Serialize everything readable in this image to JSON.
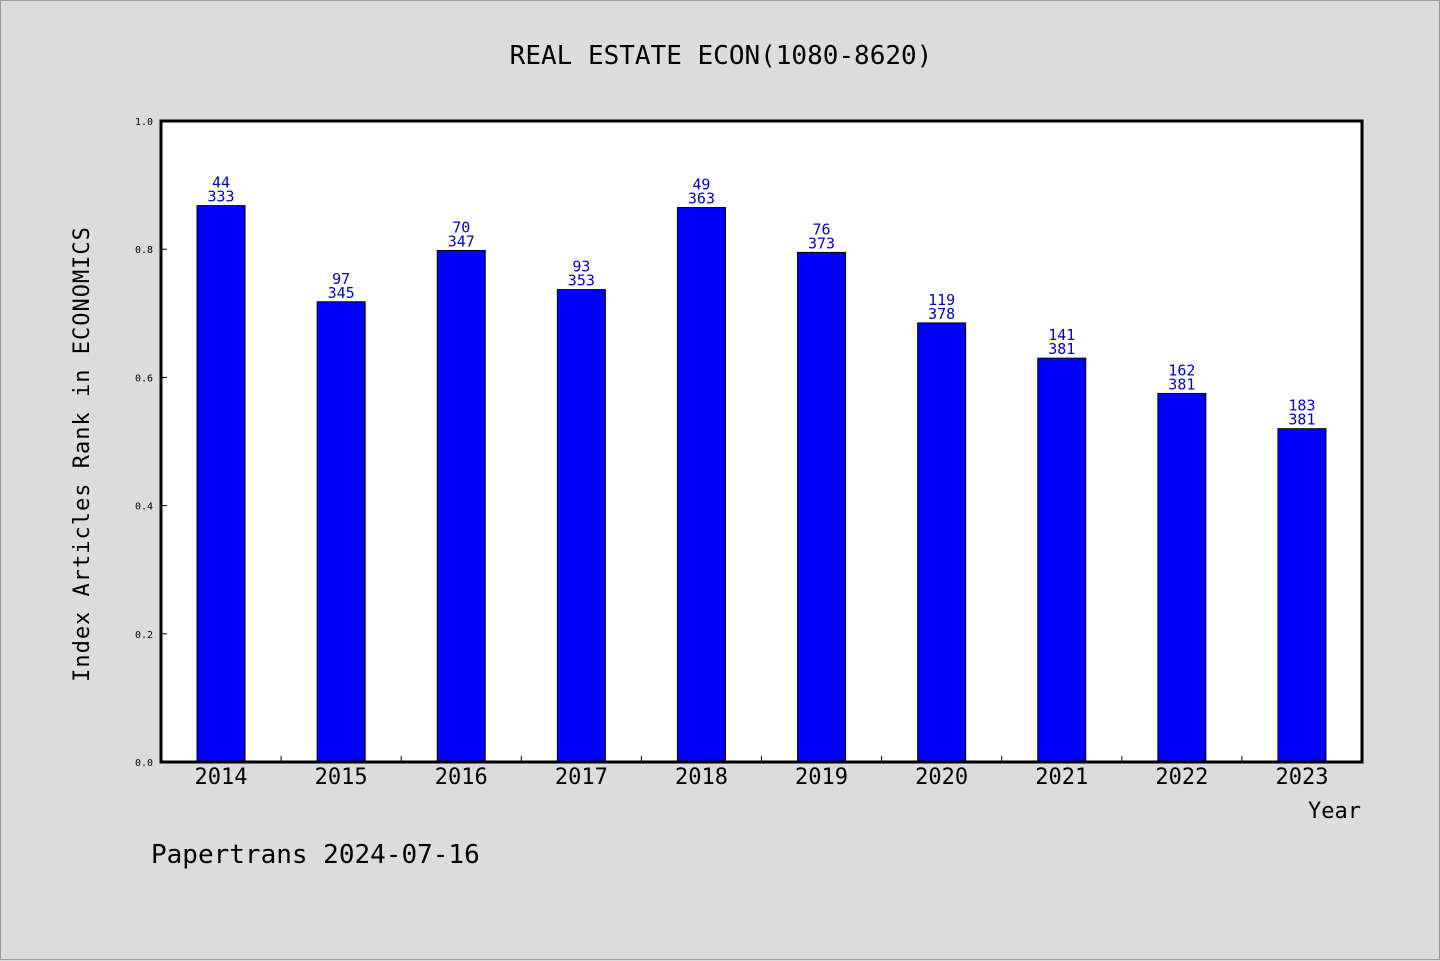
{
  "chart_data": {
    "type": "bar",
    "title": "REAL ESTATE ECON(1080-8620)",
    "xlabel": "Year",
    "ylabel": "Index Articles Rank in ECONOMICS",
    "ylim": [
      0.0,
      1.0
    ],
    "yticks": [
      "0.0",
      "0.2",
      "0.4",
      "0.6",
      "0.8",
      "1.0"
    ],
    "categories": [
      "2014",
      "2015",
      "2016",
      "2017",
      "2018",
      "2019",
      "2020",
      "2021",
      "2022",
      "2023"
    ],
    "values": [
      0.868,
      0.718,
      0.798,
      0.737,
      0.865,
      0.795,
      0.685,
      0.63,
      0.575,
      0.52
    ],
    "rank_labels": [
      "44",
      "97",
      "70",
      "93",
      "49",
      "76",
      "119",
      "141",
      "162",
      "183"
    ],
    "total_labels": [
      "333",
      "345",
      "347",
      "353",
      "363",
      "373",
      "378",
      "381",
      "381",
      "381"
    ],
    "bar_color": "#0000ff",
    "label_color": "#0000cc",
    "grid": false,
    "legend": "none"
  },
  "footer": "Papertrans 2024-07-16"
}
